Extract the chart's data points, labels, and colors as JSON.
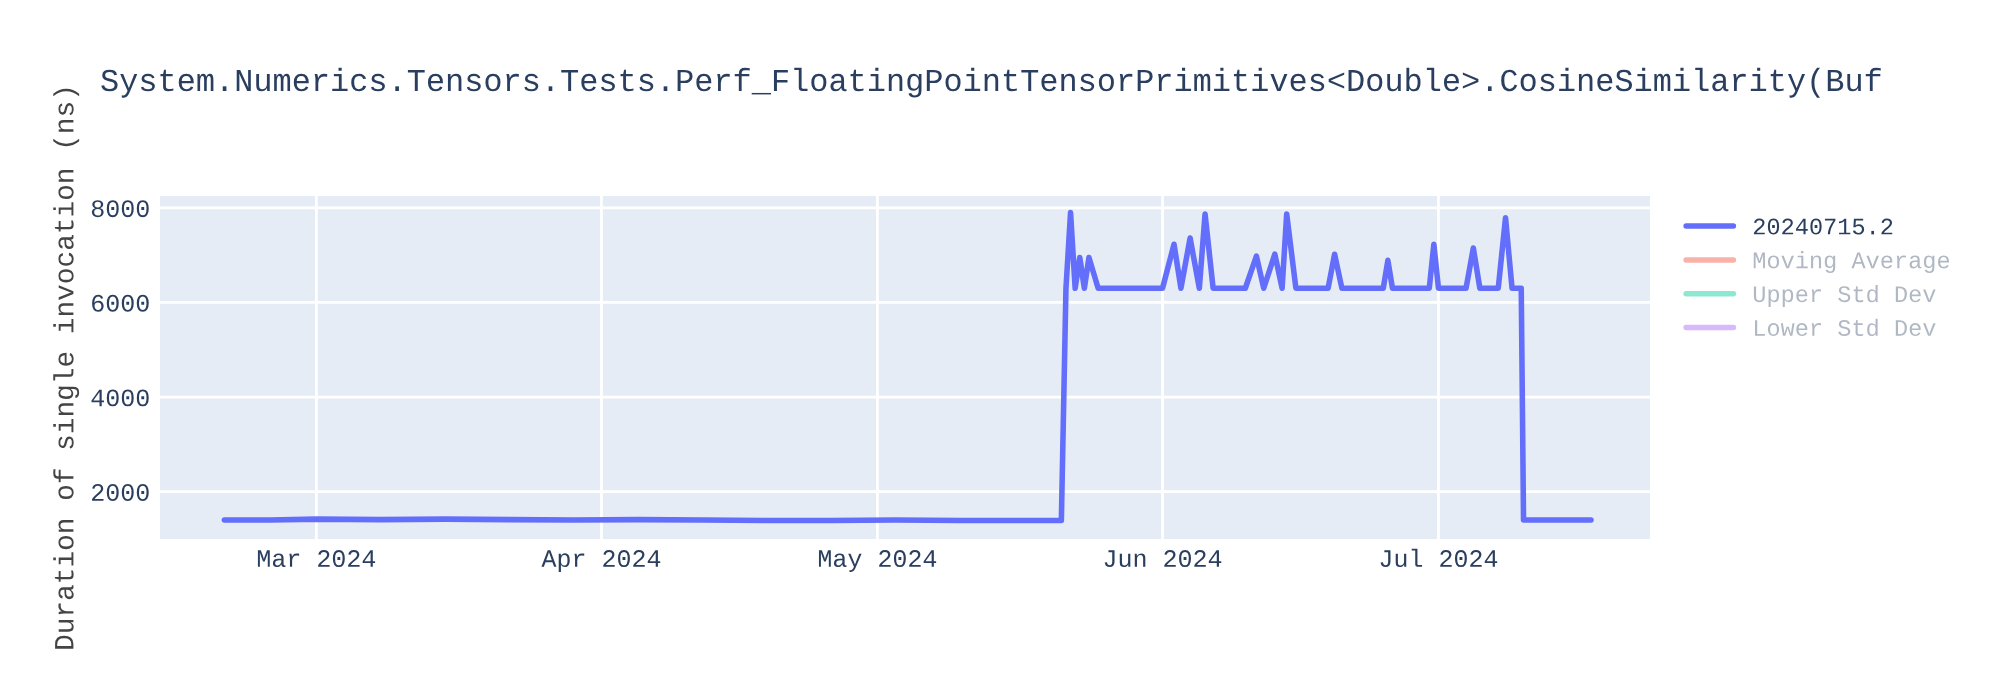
{
  "chart_data": {
    "type": "line",
    "title": "System.Numerics.Tensors.Tests.Perf_FloatingPointTensorPrimitives<Double>.CosineSimilarity(Buf",
    "ylabel": "Duration of single invocation (ns)",
    "x": [
      "2024-02-20",
      "2024-02-25",
      "2024-03-01",
      "2024-03-08",
      "2024-03-15",
      "2024-03-22",
      "2024-03-29",
      "2024-04-05",
      "2024-04-12",
      "2024-04-19",
      "2024-04-26",
      "2024-05-03",
      "2024-05-10",
      "2024-05-17",
      "2024-05-21",
      "2024-05-21T12:00",
      "2024-05-22",
      "2024-05-22T12:00",
      "2024-05-23",
      "2024-05-23T12:00",
      "2024-05-24",
      "2024-05-25",
      "2024-05-29",
      "2024-06-01",
      "2024-06-02T06:00",
      "2024-06-03",
      "2024-06-04",
      "2024-06-05",
      "2024-06-05T15:00",
      "2024-06-06T12:00",
      "2024-06-10",
      "2024-06-11T05:00",
      "2024-06-12",
      "2024-06-13T05:00",
      "2024-06-14",
      "2024-06-14T12:00",
      "2024-06-15T12:00",
      "2024-06-19",
      "2024-06-19T17:00",
      "2024-06-20T12:00",
      "2024-06-25",
      "2024-06-25T12:00",
      "2024-06-26",
      "2024-06-30",
      "2024-06-30T12:00",
      "2024-07-01",
      "2024-07-04",
      "2024-07-04T19:00",
      "2024-07-05T12:00",
      "2024-07-07T12:00",
      "2024-07-08T07:00",
      "2024-07-09",
      "2024-07-10",
      "2024-07-10T06:00",
      "2024-07-14",
      "2024-07-17T14:00"
    ],
    "series": [
      {
        "name": "20240715.2",
        "color": "#636efa",
        "values": [
          1400,
          1400,
          1420,
          1410,
          1420,
          1410,
          1400,
          1410,
          1400,
          1390,
          1390,
          1400,
          1390,
          1390,
          1390,
          6300,
          7900,
          6300,
          6950,
          6300,
          6950,
          6300,
          6300,
          6300,
          7230,
          6300,
          7360,
          6300,
          7870,
          6300,
          6300,
          6980,
          6300,
          7020,
          6300,
          7870,
          6300,
          6300,
          7020,
          6300,
          6300,
          6890,
          6300,
          6300,
          7230,
          6300,
          6300,
          7150,
          6300,
          6300,
          7790,
          6300,
          6300,
          1400,
          1400,
          1400
        ]
      },
      {
        "name": "Moving Average",
        "color": "#ef553b",
        "values": [
          null,
          null,
          null,
          null,
          null,
          null,
          null,
          null,
          null,
          null,
          null,
          null,
          null,
          null,
          null,
          null,
          null,
          null,
          null,
          null,
          null,
          null,
          null,
          null,
          null,
          null,
          null,
          null,
          null,
          null,
          null,
          null,
          null,
          null,
          null,
          null,
          null,
          null,
          null,
          null,
          null,
          null,
          null,
          null,
          null,
          null,
          null,
          null,
          null,
          null,
          null,
          null,
          null,
          null,
          null,
          null
        ]
      },
      {
        "name": "Upper Std Dev",
        "color": "#00cc96",
        "values": [
          null,
          null,
          null,
          null,
          null,
          null,
          null,
          null,
          null,
          null,
          null,
          null,
          null,
          null,
          null,
          null,
          null,
          null,
          null,
          null,
          null,
          null,
          null,
          null,
          null,
          null,
          null,
          null,
          null,
          null,
          null,
          null,
          null,
          null,
          null,
          null,
          null,
          null,
          null,
          null,
          null,
          null,
          null,
          null,
          null,
          null,
          null,
          null,
          null,
          null,
          null,
          null,
          null,
          null,
          null,
          null
        ]
      },
      {
        "name": "Lower Std Dev",
        "color": "#ab63fa",
        "values": [
          null,
          null,
          null,
          null,
          null,
          null,
          null,
          null,
          null,
          null,
          null,
          null,
          null,
          null,
          null,
          null,
          null,
          null,
          null,
          null,
          null,
          null,
          null,
          null,
          null,
          null,
          null,
          null,
          null,
          null,
          null,
          null,
          null,
          null,
          null,
          null,
          null,
          null,
          null,
          null,
          null,
          null,
          null,
          null,
          null,
          null,
          null,
          null,
          null,
          null,
          null,
          null,
          null,
          null,
          null,
          null
        ]
      }
    ],
    "xlim": [
      "2024-02-13",
      "2024-07-24"
    ],
    "xticks": [
      {
        "value": "2024-03-01",
        "label": "Mar 2024"
      },
      {
        "value": "2024-04-01",
        "label": "Apr 2024"
      },
      {
        "value": "2024-05-01",
        "label": "May 2024"
      },
      {
        "value": "2024-06-01",
        "label": "Jun 2024"
      },
      {
        "value": "2024-07-01",
        "label": "Jul 2024"
      }
    ],
    "ylim": [
      1000,
      8250
    ],
    "yticks": [
      2000,
      4000,
      6000,
      8000
    ],
    "grid": true,
    "legend": "right",
    "line_style": "solid",
    "marker": "none"
  }
}
